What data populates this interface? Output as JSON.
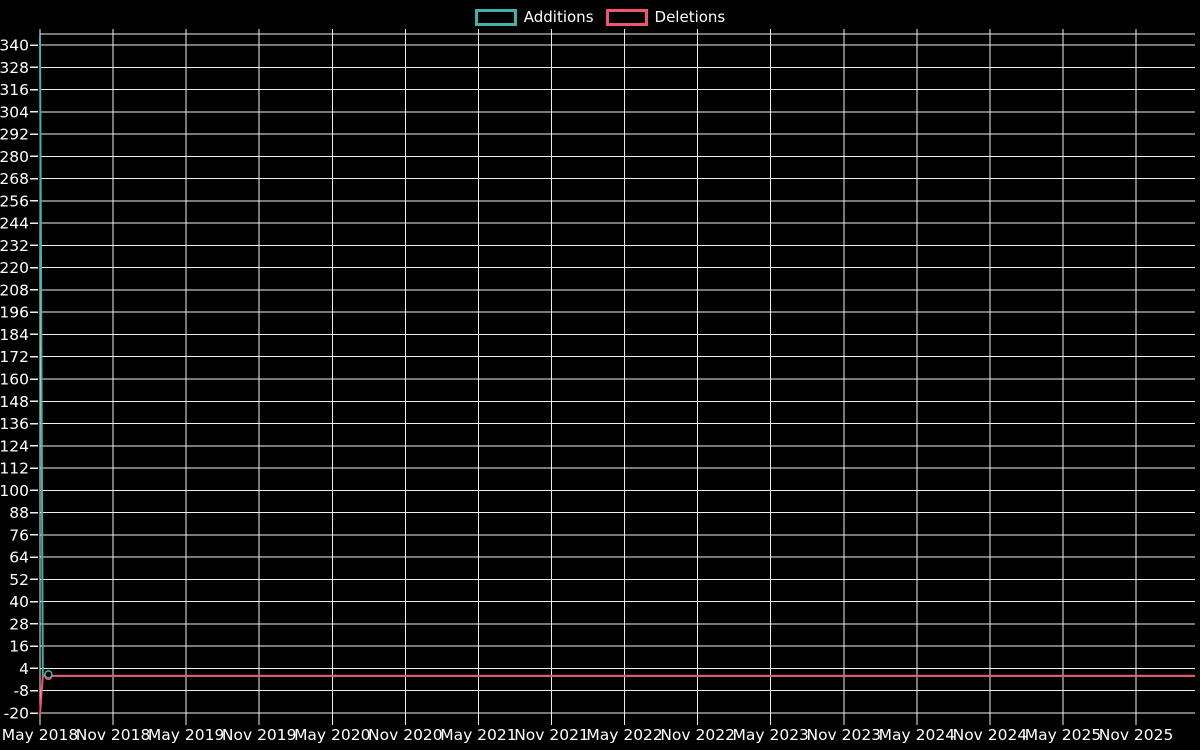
{
  "page": {
    "background_color": "#000000",
    "text_color": "#ffffff",
    "grid_color": "#efefef"
  },
  "legend": {
    "items": [
      {
        "label": "Additions",
        "color": "#45b1a7"
      },
      {
        "label": "Deletions",
        "color": "#ee5570"
      }
    ]
  },
  "chart_data": {
    "type": "line",
    "title": "",
    "legend_position": "top-center",
    "background": "#000000",
    "grid": true,
    "grid_color": "#efefef",
    "text_color": "#ffffff",
    "xlabel": "",
    "ylabel": "",
    "x_tick_labels": [
      "May 2018",
      "Nov 2018",
      "May 2019",
      "Nov 2019",
      "May 2020",
      "Nov 2020",
      "May 2021",
      "Nov 2021",
      "May 2022",
      "Nov 2022",
      "May 2023",
      "Nov 2023",
      "May 2024",
      "Nov 2024",
      "May 2025",
      "Nov 2025"
    ],
    "y_ticks": [
      340,
      328,
      316,
      304,
      292,
      280,
      268,
      256,
      244,
      232,
      220,
      208,
      196,
      184,
      172,
      160,
      148,
      136,
      124,
      112,
      100,
      88,
      76,
      64,
      52,
      40,
      28,
      16,
      4,
      -8,
      -20
    ],
    "ylim": [
      -21.6,
      346.5
    ],
    "x_unit": "weeks since May 2018",
    "weeks_total": 411.6,
    "weeks_per_tick": 26.04,
    "series": [
      {
        "name": "Additions",
        "color": "#45b1a7",
        "points_weeks": [
          [
            0,
            345
          ],
          [
            1,
            0
          ],
          [
            411.6,
            0
          ]
        ]
      },
      {
        "name": "Deletions",
        "color": "#ee5570",
        "points_weeks": [
          [
            0,
            -21
          ],
          [
            1,
            0
          ],
          [
            411.6,
            0
          ]
        ]
      }
    ],
    "markers": [
      {
        "series": "Deletions",
        "week": 3,
        "value": 0
      },
      {
        "series": "Additions",
        "week": 3,
        "value": 0.8
      }
    ]
  }
}
